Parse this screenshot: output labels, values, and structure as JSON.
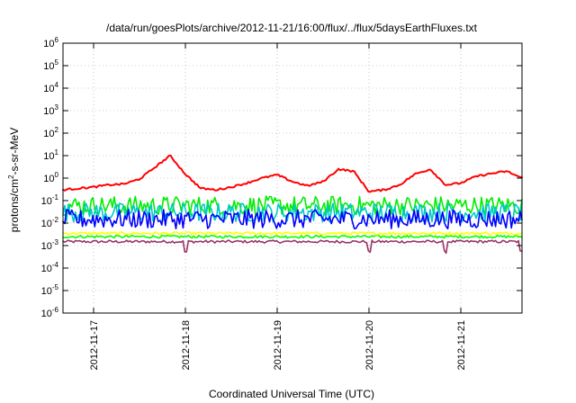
{
  "chart_data": {
    "type": "line",
    "title": "/data/run/goesPlots/archive/2012-11-21/16:00/flux/../flux/5daysEarthFluxes.txt",
    "xlabel": "Coordinated Universal Time (UTC)",
    "ylabel": "protons/cm2-s-sr-MeV",
    "ylabel_parts": [
      "protons/cm",
      "2",
      "-s-sr-MeV"
    ],
    "yscale": "log",
    "ylim": [
      1e-06,
      1000000.0
    ],
    "y_ticks": [
      {
        "exp": "-6"
      },
      {
        "exp": "-5"
      },
      {
        "exp": "-4"
      },
      {
        "exp": "-3"
      },
      {
        "exp": "-2"
      },
      {
        "exp": "-1"
      },
      {
        "exp": "0"
      },
      {
        "exp": "1"
      },
      {
        "exp": "2"
      },
      {
        "exp": "3"
      },
      {
        "exp": "4"
      },
      {
        "exp": "5"
      },
      {
        "exp": "6"
      }
    ],
    "y_tick_base": "10",
    "xlim": [
      "2012-11-16 16:00",
      "2012-11-21 16:00"
    ],
    "x_ticks": [
      "2012-11-17",
      "2012-11-18",
      "2012-11-19",
      "2012-11-20",
      "2012-11-21"
    ],
    "grid": true,
    "legend": "none",
    "series": [
      {
        "color": "#ff0000",
        "x": [
          "2012-11-16 16:00",
          "2012-11-16 20:00",
          "2012-11-17 00:00",
          "2012-11-17 04:00",
          "2012-11-17 08:00",
          "2012-11-17 12:00",
          "2012-11-17 16:00",
          "2012-11-17 20:00",
          "2012-11-18 00:00",
          "2012-11-18 04:00",
          "2012-11-18 08:00",
          "2012-11-18 12:00",
          "2012-11-18 16:00",
          "2012-11-18 20:00",
          "2012-11-19 00:00",
          "2012-11-19 04:00",
          "2012-11-19 08:00",
          "2012-11-19 12:00",
          "2012-11-19 16:00",
          "2012-11-19 20:00",
          "2012-11-20 00:00",
          "2012-11-20 04:00",
          "2012-11-20 08:00",
          "2012-11-20 12:00",
          "2012-11-20 16:00",
          "2012-11-20 20:00",
          "2012-11-21 00:00",
          "2012-11-21 04:00",
          "2012-11-21 08:00",
          "2012-11-21 12:00",
          "2012-11-21 16:00"
        ],
        "values": [
          0.3,
          0.35,
          0.4,
          0.5,
          0.55,
          0.9,
          3,
          10,
          1.5,
          0.35,
          0.3,
          0.4,
          0.6,
          1.0,
          1.4,
          0.7,
          0.45,
          0.7,
          2.5,
          2.0,
          0.25,
          0.3,
          0.5,
          1.5,
          2.5,
          0.5,
          0.6,
          1.2,
          1.6,
          2.0,
          1.0
        ]
      },
      {
        "color": "#00ee00",
        "x": [
          "2012-11-16 16:00",
          "2012-11-21 16:00"
        ],
        "values": [
          0.06,
          0.06
        ],
        "variability": "high"
      },
      {
        "color": "#00c8c8",
        "x": [
          "2012-11-16 16:00",
          "2012-11-21 16:00"
        ],
        "values": [
          0.03,
          0.03
        ],
        "variability": "high"
      },
      {
        "color": "#0000ff",
        "x": [
          "2012-11-16 16:00",
          "2012-11-21 16:00"
        ],
        "values": [
          0.015,
          0.015
        ],
        "variability": "high"
      },
      {
        "color": "#ffff00",
        "x": [
          "2012-11-16 16:00",
          "2012-11-21 16:00"
        ],
        "values": [
          0.0035,
          0.0035
        ],
        "variability": "low"
      },
      {
        "color": "#00ff00",
        "x": [
          "2012-11-16 16:00",
          "2012-11-21 16:00"
        ],
        "values": [
          0.0025,
          0.0025
        ],
        "variability": "low"
      },
      {
        "color": "#993366",
        "x": [
          "2012-11-16 16:00",
          "2012-11-21 16:00"
        ],
        "values": [
          0.0015,
          0.0015
        ],
        "variability": "low",
        "dips": [
          "2012-11-18 00:00",
          "2012-11-20 00:00",
          "2012-11-20 20:00",
          "2012-11-21 16:00"
        ]
      }
    ]
  }
}
